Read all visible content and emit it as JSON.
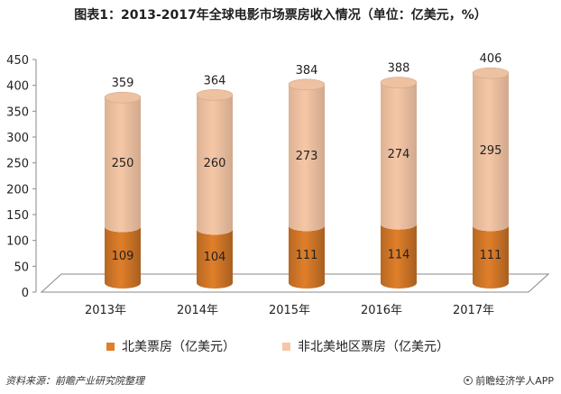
{
  "title": "图表1：2013-2017年全球电影市场票房收入情况（单位：亿美元，%）",
  "colors": {
    "north_america": "#e07f2a",
    "non_north_america": "#f5c7a6",
    "floor": "#ffffff",
    "axis": "#888888"
  },
  "legend": {
    "north_america": "北美票房（亿美元）",
    "non_north_america": "非北美地区票房（亿美元）"
  },
  "source": "资料来源：前瞻产业研究院整理",
  "brand": "前瞻经济学人APP",
  "brand_icon": "circle-dot-icon",
  "chart_data": {
    "type": "bar",
    "stacked": true,
    "style": "3d-cylinder",
    "categories": [
      "2013年",
      "2014年",
      "2015年",
      "2016年",
      "2017年"
    ],
    "series": [
      {
        "name": "北美票房（亿美元）",
        "values": [
          109,
          104,
          111,
          114,
          111
        ]
      },
      {
        "name": "非北美地区票房（亿美元）",
        "values": [
          250,
          260,
          273,
          274,
          295
        ]
      }
    ],
    "totals": [
      359,
      364,
      384,
      388,
      406
    ],
    "ylim": [
      0,
      450
    ],
    "yticks": [
      "0",
      "50",
      "100",
      "150",
      "200",
      "250",
      "300",
      "350",
      "400",
      "450"
    ],
    "legend_position": "bottom"
  }
}
